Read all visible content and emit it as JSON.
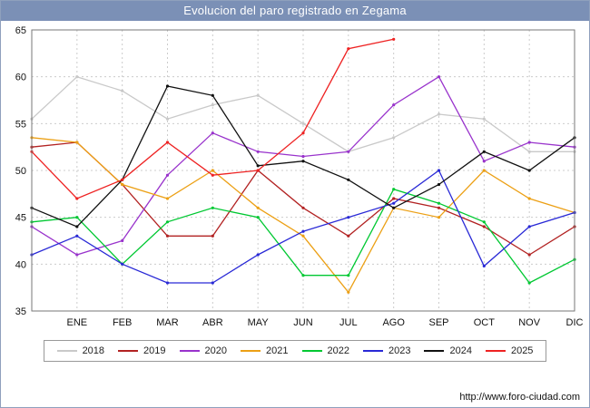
{
  "title": "Evolucion del paro registrado en Zegama",
  "footer": {
    "url": "http://www.foro-ciudad.com"
  },
  "colors": {
    "header_bg": "#7b90b6",
    "header_text": "#ffffff",
    "grid": "#cccccc",
    "axis_border": "#777777",
    "tick_text": "#111111",
    "plot_bg": "#ffffff"
  },
  "chart_data": {
    "type": "line",
    "title": "Evolucion del paro registrado en Zegama",
    "ylabel": "",
    "xlabel": "",
    "ylim": [
      35,
      65
    ],
    "y_ticks": [
      35,
      40,
      45,
      50,
      55,
      60,
      65
    ],
    "grid": true,
    "legend_position": "bottom",
    "categories": [
      "ENE",
      "FEB",
      "MAR",
      "ABR",
      "MAY",
      "JUN",
      "JUL",
      "AGO",
      "SEP",
      "OCT",
      "NOV",
      "DIC"
    ],
    "x_layout": "13 points per series: index 0 sits on the left axis (unlabeled), indices 1-12 align with ENE-DIC ticks",
    "series": [
      {
        "name": "2018",
        "color": "#c9c9c9",
        "values": [
          55.5,
          60,
          58.5,
          55.5,
          57,
          58,
          55,
          52,
          53.5,
          56,
          55.5,
          52,
          52
        ]
      },
      {
        "name": "2019",
        "color": "#b22222",
        "values": [
          52.5,
          53,
          48.5,
          43,
          43,
          50,
          46,
          43,
          47,
          46,
          44,
          41,
          44
        ]
      },
      {
        "name": "2020",
        "color": "#9933cc",
        "values": [
          44,
          41,
          42.5,
          49.5,
          54,
          52,
          51.5,
          52,
          57,
          60,
          51,
          53,
          52.5
        ]
      },
      {
        "name": "2021",
        "color": "#eca015",
        "values": [
          53.5,
          53,
          48.5,
          47,
          50,
          46,
          43,
          37,
          46,
          45,
          50,
          47,
          45.5
        ]
      },
      {
        "name": "2022",
        "color": "#00c832",
        "values": [
          44.5,
          45,
          40,
          44.5,
          46,
          45,
          38.8,
          38.8,
          48,
          46.5,
          44.5,
          38,
          40.5
        ]
      },
      {
        "name": "2023",
        "color": "#2929d6",
        "values": [
          41,
          43,
          40,
          38,
          38,
          41,
          43.5,
          45,
          46.5,
          50,
          39.8,
          44,
          45.5
        ]
      },
      {
        "name": "2024",
        "color": "#111111",
        "values": [
          46,
          44,
          49,
          59,
          58,
          50.5,
          51,
          49,
          46,
          48.5,
          52,
          50,
          53.5
        ]
      },
      {
        "name": "2025",
        "color": "#ee2222",
        "values": [
          52,
          47,
          49,
          53,
          49.5,
          50,
          54,
          63,
          64,
          null,
          null,
          null,
          null
        ]
      }
    ]
  }
}
